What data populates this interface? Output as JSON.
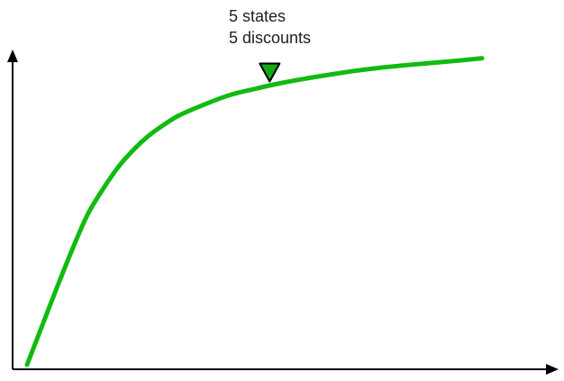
{
  "chart_data": {
    "type": "line",
    "title": "",
    "xlabel": "",
    "ylabel": "",
    "x_ticks": [],
    "y_ticks": [],
    "grid": false,
    "xlim": [
      0,
      100
    ],
    "ylim": [
      0,
      100
    ],
    "series": [
      {
        "color": "#11bb11",
        "x": [
          0,
          3,
          6,
          9,
          12,
          15,
          18,
          21,
          24,
          27,
          30,
          35,
          40,
          45,
          50,
          55,
          60,
          65,
          70,
          75,
          80,
          85,
          90
        ],
        "y": [
          0,
          12.5,
          25,
          37,
          48,
          56,
          63,
          68.5,
          73,
          76.5,
          79.5,
          83,
          86,
          88,
          89.8,
          91.3,
          92.6,
          93.8,
          94.8,
          95.6,
          96.3,
          97,
          97.8
        ]
      }
    ],
    "annotations": [
      {
        "lines": [
          "5 states",
          "5 discounts"
        ],
        "x": 48,
        "y": 89.5,
        "marker": "triangle-down",
        "marker_color": "#11aa11"
      }
    ]
  }
}
